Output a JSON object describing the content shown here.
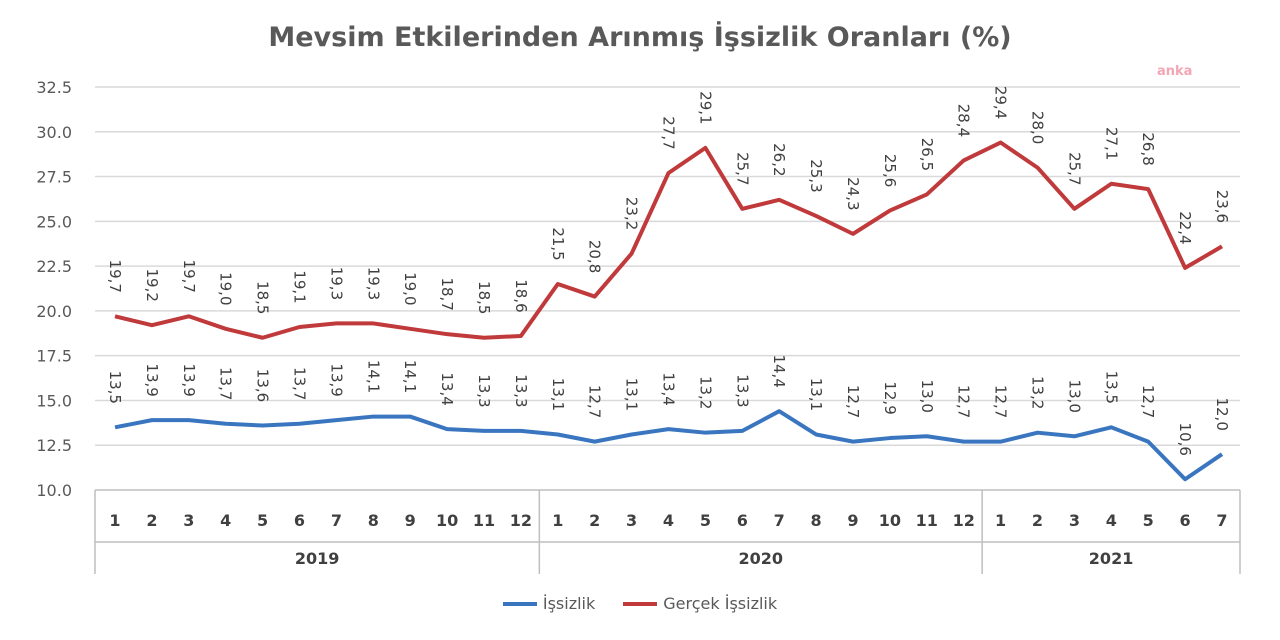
{
  "chart_data": {
    "type": "line",
    "title": "Mevsim Etkilerinden Arınmış İşsizlik Oranları (%)",
    "watermark": "anka",
    "ylim": [
      10.0,
      32.5
    ],
    "yticks": [
      "10.0",
      "12.5",
      "15.0",
      "17.5",
      "20.0",
      "22.5",
      "25.0",
      "27.5",
      "30.0",
      "32.5"
    ],
    "grid": true,
    "legend_position": "bottom",
    "year_groups": [
      {
        "year": "2019",
        "months": [
          "1",
          "2",
          "3",
          "4",
          "5",
          "6",
          "7",
          "8",
          "9",
          "10",
          "11",
          "12"
        ]
      },
      {
        "year": "2020",
        "months": [
          "1",
          "2",
          "3",
          "4",
          "5",
          "6",
          "7",
          "8",
          "9",
          "10",
          "11",
          "12"
        ]
      },
      {
        "year": "2021",
        "months": [
          "1",
          "2",
          "3",
          "4",
          "5",
          "6",
          "7"
        ]
      }
    ],
    "series": [
      {
        "name": "İşsizlik",
        "color": "#3a76c0",
        "values": [
          13.5,
          13.9,
          13.9,
          13.7,
          13.6,
          13.7,
          13.9,
          14.1,
          14.1,
          13.4,
          13.3,
          13.3,
          13.1,
          12.7,
          13.1,
          13.4,
          13.2,
          13.3,
          14.4,
          13.1,
          12.7,
          12.9,
          13.0,
          12.7,
          12.7,
          13.2,
          13.0,
          13.5,
          12.7,
          10.6,
          12.0
        ]
      },
      {
        "name": "Gerçek İşsizlik",
        "color": "#c0393b",
        "values": [
          19.7,
          19.2,
          19.7,
          19.0,
          18.5,
          19.1,
          19.3,
          19.3,
          19.0,
          18.7,
          18.5,
          18.6,
          21.5,
          20.8,
          23.2,
          27.7,
          29.1,
          25.7,
          26.2,
          25.3,
          24.3,
          25.6,
          26.5,
          28.4,
          29.4,
          28.0,
          25.7,
          27.1,
          26.8,
          22.4,
          23.6
        ]
      }
    ]
  }
}
